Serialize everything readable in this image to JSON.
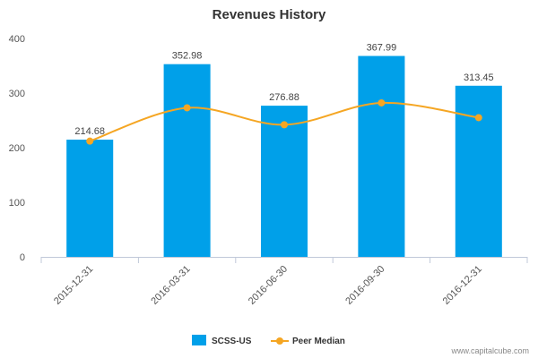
{
  "chart_data": {
    "type": "bar",
    "title": "Revenues History",
    "categories": [
      "2015-12-31",
      "2016-03-31",
      "2016-06-30",
      "2016-09-30",
      "2016-12-31"
    ],
    "series": [
      {
        "name": "SCSS-US",
        "type": "bar",
        "values": [
          214.68,
          352.98,
          276.88,
          367.99,
          313.45
        ],
        "color": "#00a0e9"
      },
      {
        "name": "Peer Median",
        "type": "line",
        "values": [
          212,
          273,
          242,
          282,
          255
        ],
        "color": "#f5a623"
      }
    ],
    "data_labels": [
      "214.68",
      "352.98",
      "276.88",
      "367.99",
      "313.45"
    ],
    "yticks": [
      "0",
      "100",
      "200",
      "300",
      "400"
    ],
    "ylim": [
      0,
      400
    ],
    "xlabel": "",
    "ylabel": "",
    "grid": false,
    "legend_position": "bottom-center"
  },
  "credit": "www.capitalcube.com"
}
